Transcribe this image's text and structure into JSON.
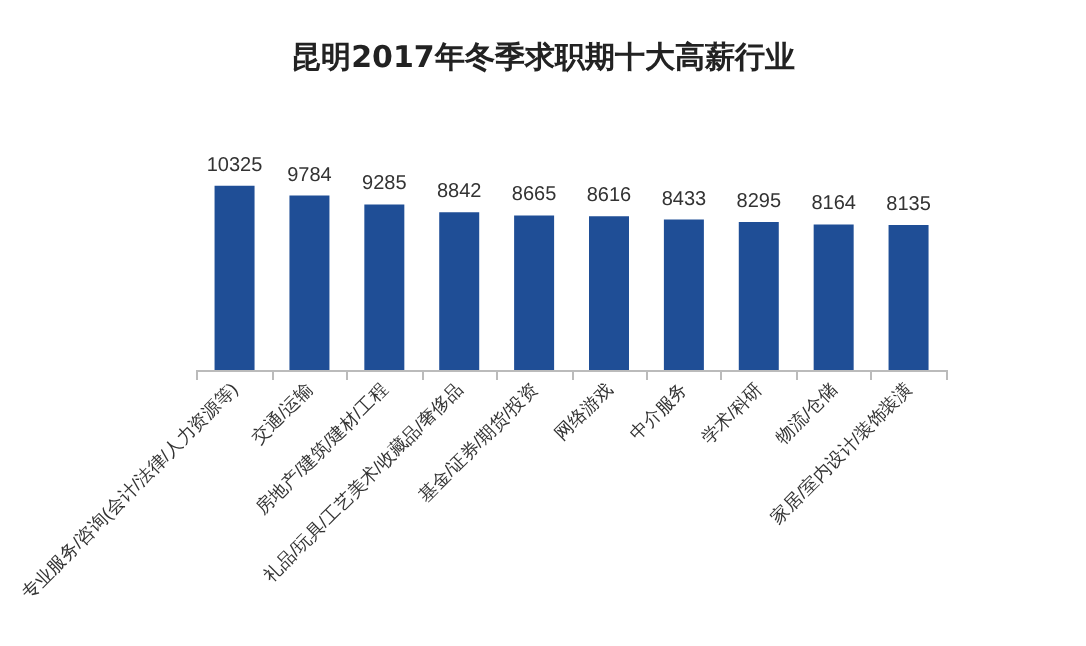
{
  "chart_data": {
    "type": "bar",
    "title": "昆明2017年冬季求职期十大高薪行业",
    "categories": [
      "专业服务/咨询(会计/法律/人力资源等)",
      "交通/运输",
      "房地产/建筑/建材/工程",
      "礼品/玩具/工艺美术/收藏品/奢侈品",
      "基金/证券/期货/投资",
      "网络游戏",
      "中介服务",
      "学术/科研",
      "物流/仓储",
      "家居/室内设计/装饰装潢"
    ],
    "values": [
      10325,
      9784,
      9285,
      8842,
      8665,
      8616,
      8433,
      8295,
      8164,
      8135
    ],
    "color": "#1f4e96",
    "data_labels": true
  }
}
